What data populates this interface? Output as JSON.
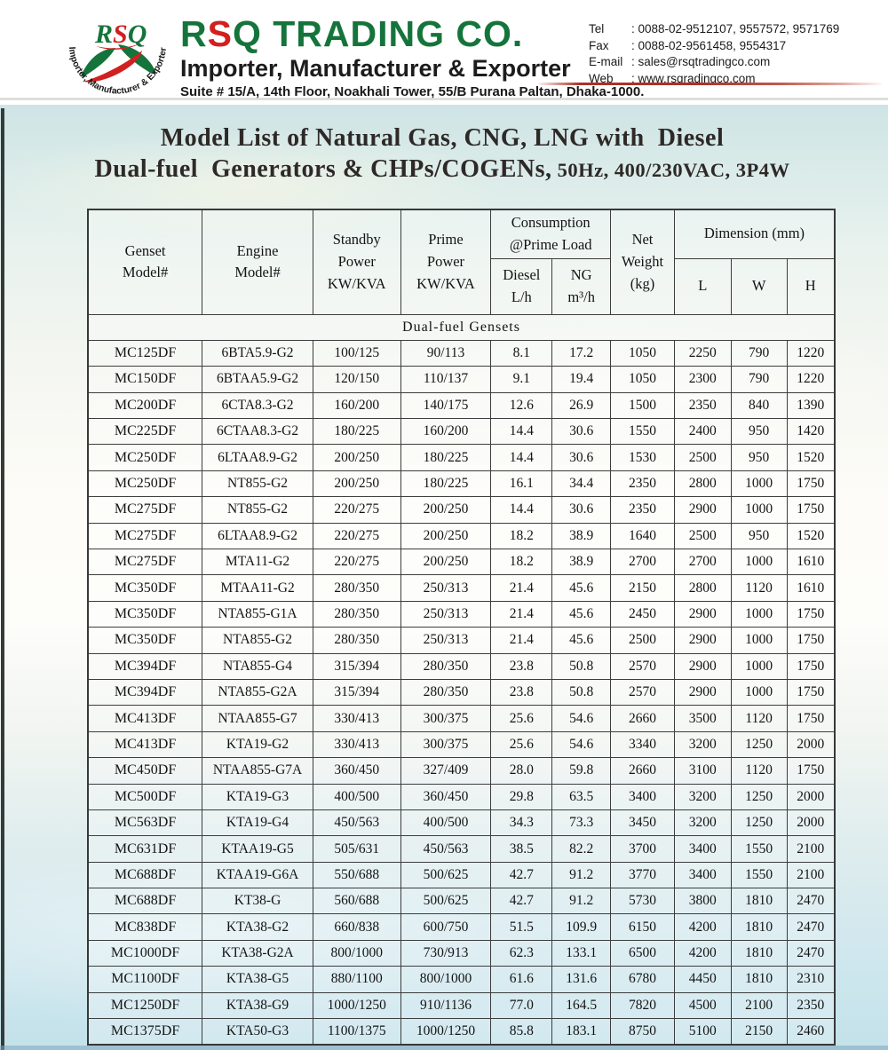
{
  "colors": {
    "brand_green": "#15743b",
    "brand_red": "#d1201f",
    "table_border": "#3d3d3d",
    "sky_top": "#cde3e5",
    "sky_bottom": "#c3e1ea",
    "red_rule": "#a93226"
  },
  "header": {
    "logo": {
      "monogram_r": "R",
      "monogram_s": "S",
      "monogram_q": "Q",
      "arc_text": "Importer, Manufacturer & Exporter"
    },
    "brand": {
      "part1": "R",
      "part2": "S",
      "part3": "Q TRADING CO."
    },
    "tagline": "Importer, Manufacturer & Exporter",
    "address": "Suite # 15/A, 14th Floor, Noakhali Tower, 55/B Purana Paltan, Dhaka-1000.",
    "contacts": [
      {
        "label": "Tel",
        "value": ": 0088-02-9512107, 9557572, 9571769"
      },
      {
        "label": "Fax",
        "value": ": 0088-02-9561458, 9554317"
      },
      {
        "label": "E-mail",
        "value": ": sales@rsqtradingco.com"
      },
      {
        "label": "Web",
        "value": ": www.rsqradingco.com"
      }
    ]
  },
  "title": {
    "line1": "Model List of Natural Gas, CNG, LNG with  Diesel",
    "line2_main": "Dual-fuel  Generators & CHPs/COGENs,",
    "line2_sub": " 50Hz, 400/230VAC, 3P4W"
  },
  "table": {
    "headers": {
      "genset": "Genset\nModel#",
      "engine": "Engine\nModel#",
      "standby": "Standby\nPower\nKW/KVA",
      "prime": "Prime\nPower\nKW/KVA",
      "consumption": "Consumption\n@Prime Load",
      "diesel": "Diesel\nL/h",
      "ng": "NG\nm³/h",
      "net_weight": "Net\nWeight\n(kg)",
      "dimension": "Dimension  (mm)",
      "dim_l": "L",
      "dim_w": "W",
      "dim_h": "H"
    },
    "section_label": "Dual-fuel  Gensets",
    "rows": [
      [
        "MC125DF",
        "6BTA5.9-G2",
        "100/125",
        "90/113",
        "8.1",
        "17.2",
        "1050",
        "2250",
        "790",
        "1220"
      ],
      [
        "MC150DF",
        "6BTAA5.9-G2",
        "120/150",
        "110/137",
        "9.1",
        "19.4",
        "1050",
        "2300",
        "790",
        "1220"
      ],
      [
        "MC200DF",
        "6CTA8.3-G2",
        "160/200",
        "140/175",
        "12.6",
        "26.9",
        "1500",
        "2350",
        "840",
        "1390"
      ],
      [
        "MC225DF",
        "6CTAA8.3-G2",
        "180/225",
        "160/200",
        "14.4",
        "30.6",
        "1550",
        "2400",
        "950",
        "1420"
      ],
      [
        "MC250DF",
        "6LTAA8.9-G2",
        "200/250",
        "180/225",
        "14.4",
        "30.6",
        "1530",
        "2500",
        "950",
        "1520"
      ],
      [
        "MC250DF",
        "NT855-G2",
        "200/250",
        "180/225",
        "16.1",
        "34.4",
        "2350",
        "2800",
        "1000",
        "1750"
      ],
      [
        "MC275DF",
        "NT855-G2",
        "220/275",
        "200/250",
        "14.4",
        "30.6",
        "2350",
        "2900",
        "1000",
        "1750"
      ],
      [
        "MC275DF",
        "6LTAA8.9-G2",
        "220/275",
        "200/250",
        "18.2",
        "38.9",
        "1640",
        "2500",
        "950",
        "1520"
      ],
      [
        "MC275DF",
        "MTA11-G2",
        "220/275",
        "200/250",
        "18.2",
        "38.9",
        "2700",
        "2700",
        "1000",
        "1610"
      ],
      [
        "MC350DF",
        "MTAA11-G2",
        "280/350",
        "250/313",
        "21.4",
        "45.6",
        "2150",
        "2800",
        "1120",
        "1610"
      ],
      [
        "MC350DF",
        "NTA855-G1A",
        "280/350",
        "250/313",
        "21.4",
        "45.6",
        "2450",
        "2900",
        "1000",
        "1750"
      ],
      [
        "MC350DF",
        "NTA855-G2",
        "280/350",
        "250/313",
        "21.4",
        "45.6",
        "2500",
        "2900",
        "1000",
        "1750"
      ],
      [
        "MC394DF",
        "NTA855-G4",
        "315/394",
        "280/350",
        "23.8",
        "50.8",
        "2570",
        "2900",
        "1000",
        "1750"
      ],
      [
        "MC394DF",
        "NTA855-G2A",
        "315/394",
        "280/350",
        "23.8",
        "50.8",
        "2570",
        "2900",
        "1000",
        "1750"
      ],
      [
        "MC413DF",
        "NTAA855-G7",
        "330/413",
        "300/375",
        "25.6",
        "54.6",
        "2660",
        "3500",
        "1120",
        "1750"
      ],
      [
        "MC413DF",
        "KTA19-G2",
        "330/413",
        "300/375",
        "25.6",
        "54.6",
        "3340",
        "3200",
        "1250",
        "2000"
      ],
      [
        "MC450DF",
        "NTAA855-G7A",
        "360/450",
        "327/409",
        "28.0",
        "59.8",
        "2660",
        "3100",
        "1120",
        "1750"
      ],
      [
        "MC500DF",
        "KTA19-G3",
        "400/500",
        "360/450",
        "29.8",
        "63.5",
        "3400",
        "3200",
        "1250",
        "2000"
      ],
      [
        "MC563DF",
        "KTA19-G4",
        "450/563",
        "400/500",
        "34.3",
        "73.3",
        "3450",
        "3200",
        "1250",
        "2000"
      ],
      [
        "MC631DF",
        "KTAA19-G5",
        "505/631",
        "450/563",
        "38.5",
        "82.2",
        "3700",
        "3400",
        "1550",
        "2100"
      ],
      [
        "MC688DF",
        "KTAA19-G6A",
        "550/688",
        "500/625",
        "42.7",
        "91.2",
        "3770",
        "3400",
        "1550",
        "2100"
      ],
      [
        "MC688DF",
        "KT38-G",
        "560/688",
        "500/625",
        "42.7",
        "91.2",
        "5730",
        "3800",
        "1810",
        "2470"
      ],
      [
        "MC838DF",
        "KTA38-G2",
        "660/838",
        "600/750",
        "51.5",
        "109.9",
        "6150",
        "4200",
        "1810",
        "2470"
      ],
      [
        "MC1000DF",
        "KTA38-G2A",
        "800/1000",
        "730/913",
        "62.3",
        "133.1",
        "6500",
        "4200",
        "1810",
        "2470"
      ],
      [
        "MC1100DF",
        "KTA38-G5",
        "880/1100",
        "800/1000",
        "61.6",
        "131.6",
        "6780",
        "4450",
        "1810",
        "2310"
      ],
      [
        "MC1250DF",
        "KTA38-G9",
        "1000/1250",
        "910/1136",
        "77.0",
        "164.5",
        "7820",
        "4500",
        "2100",
        "2350"
      ],
      [
        "MC1375DF",
        "KTA50-G3",
        "1100/1375",
        "1000/1250",
        "85.8",
        "183.1",
        "8750",
        "5100",
        "2150",
        "2460"
      ]
    ]
  }
}
